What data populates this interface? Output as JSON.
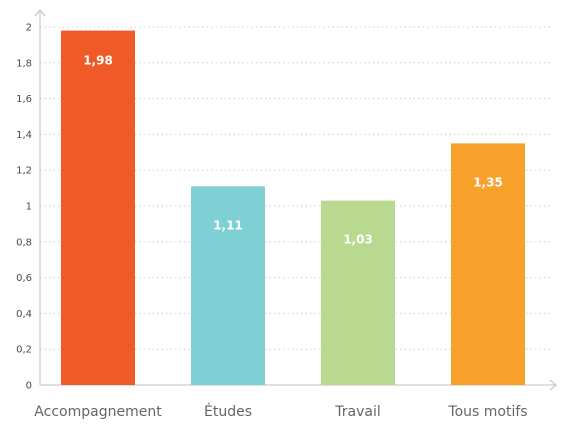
{
  "chart_data": {
    "type": "bar",
    "categories": [
      "Accompagnement",
      "Études",
      "Travail",
      "Tous motifs"
    ],
    "values": [
      1.98,
      1.11,
      1.03,
      1.35
    ],
    "value_labels": [
      "1,98",
      "1,11",
      "1,03",
      "1,35"
    ],
    "colors": [
      "#F05A28",
      "#7FD0D4",
      "#B8D98F",
      "#F7A02B"
    ],
    "ylim": [
      0,
      2
    ],
    "yticks": [
      0,
      0.2,
      0.4,
      0.6,
      0.8,
      1,
      1.2,
      1.4,
      1.6,
      1.8,
      2
    ],
    "ytick_labels": [
      "0",
      "0,2",
      "0,4",
      "0,6",
      "0,8",
      "1",
      "1,2",
      "1,4",
      "1,6",
      "1,8",
      "2"
    ],
    "grid": true,
    "title": "",
    "xlabel": "",
    "ylabel": ""
  }
}
